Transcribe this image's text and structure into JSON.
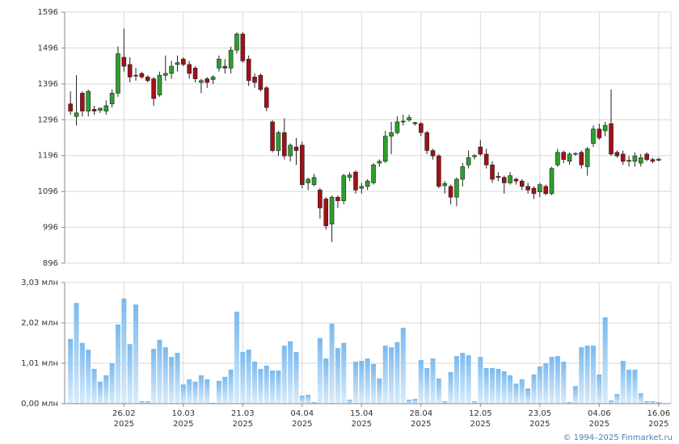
{
  "chart_data": [
    {
      "type": "candlestick",
      "up_color": "#2ca02c",
      "down_color": "#a50f15",
      "grid": true,
      "ylim": [
        896,
        1596
      ],
      "yticks": [
        896,
        996,
        1096,
        1196,
        1296,
        1396,
        1496,
        1596
      ],
      "open": [
        1340,
        1305,
        1370,
        1320,
        1325,
        1322,
        1320,
        1340,
        1370,
        1470,
        1450,
        1420,
        1425,
        1415,
        1410,
        1365,
        1420,
        1425,
        1450,
        1465,
        1450,
        1440,
        1400,
        1410,
        1408,
        1440,
        1445,
        1440,
        1490,
        1535,
        1465,
        1415,
        1420,
        1385,
        1290,
        1210,
        1260,
        1195,
        1220,
        1225,
        1120,
        1115,
        1100,
        1075,
        1005,
        1080,
        1070,
        1135,
        1150,
        1105,
        1110,
        1120,
        1175,
        1180,
        1250,
        1260,
        1292,
        1295,
        1288,
        1285,
        1260,
        1210,
        1195,
        1112,
        1110,
        1080,
        1130,
        1170,
        1193,
        1220,
        1200,
        1170,
        1138,
        1135,
        1120,
        1130,
        1125,
        1110,
        1105,
        1095,
        1110,
        1090,
        1170,
        1205,
        1180,
        1200,
        1205,
        1165,
        1230,
        1270,
        1265,
        1285,
        1205,
        1200,
        1180,
        1180,
        1175,
        1200,
        1185,
        1183
      ],
      "high": [
        1375,
        1420,
        1375,
        1380,
        1335,
        1330,
        1350,
        1380,
        1500,
        1550,
        1470,
        1440,
        1430,
        1420,
        1415,
        1430,
        1475,
        1460,
        1475,
        1470,
        1460,
        1445,
        1410,
        1415,
        1420,
        1475,
        1465,
        1500,
        1540,
        1540,
        1475,
        1425,
        1425,
        1390,
        1295,
        1265,
        1300,
        1230,
        1245,
        1235,
        1135,
        1145,
        1105,
        1080,
        1085,
        1085,
        1145,
        1150,
        1155,
        1120,
        1130,
        1175,
        1185,
        1265,
        1290,
        1305,
        1310,
        1310,
        1290,
        1290,
        1265,
        1215,
        1200,
        1125,
        1115,
        1135,
        1175,
        1210,
        1200,
        1240,
        1215,
        1180,
        1150,
        1140,
        1150,
        1135,
        1130,
        1120,
        1110,
        1120,
        1115,
        1165,
        1215,
        1210,
        1205,
        1205,
        1210,
        1220,
        1280,
        1285,
        1290,
        1380,
        1210,
        1210,
        1195,
        1205,
        1200,
        1205,
        1190,
        1190
      ],
      "low": [
        1310,
        1280,
        1305,
        1305,
        1310,
        1315,
        1310,
        1330,
        1360,
        1430,
        1400,
        1405,
        1410,
        1400,
        1335,
        1360,
        1405,
        1410,
        1430,
        1445,
        1410,
        1400,
        1370,
        1385,
        1395,
        1430,
        1425,
        1425,
        1480,
        1455,
        1390,
        1385,
        1375,
        1320,
        1205,
        1195,
        1185,
        1180,
        1170,
        1105,
        1100,
        1110,
        1020,
        990,
        955,
        1050,
        1060,
        1125,
        1090,
        1090,
        1100,
        1115,
        1165,
        1175,
        1200,
        1255,
        1280,
        1290,
        1280,
        1250,
        1200,
        1185,
        1105,
        1090,
        1060,
        1055,
        1110,
        1160,
        1185,
        1195,
        1160,
        1120,
        1125,
        1090,
        1115,
        1115,
        1100,
        1090,
        1075,
        1080,
        1085,
        1085,
        1165,
        1175,
        1170,
        1195,
        1160,
        1140,
        1220,
        1240,
        1250,
        1195,
        1190,
        1170,
        1165,
        1165,
        1165,
        1180,
        1175,
        1180
      ],
      "close": [
        1320,
        1315,
        1320,
        1375,
        1320,
        1328,
        1335,
        1370,
        1480,
        1445,
        1415,
        1418,
        1415,
        1405,
        1355,
        1420,
        1425,
        1445,
        1455,
        1450,
        1425,
        1410,
        1405,
        1400,
        1415,
        1465,
        1440,
        1490,
        1535,
        1460,
        1405,
        1400,
        1380,
        1330,
        1210,
        1260,
        1195,
        1225,
        1210,
        1115,
        1130,
        1135,
        1050,
        1000,
        1080,
        1070,
        1140,
        1142,
        1100,
        1110,
        1125,
        1170,
        1180,
        1250,
        1260,
        1290,
        1290,
        1302,
        1285,
        1260,
        1210,
        1195,
        1110,
        1118,
        1080,
        1130,
        1165,
        1190,
        1196,
        1200,
        1170,
        1130,
        1135,
        1120,
        1140,
        1125,
        1110,
        1100,
        1090,
        1115,
        1090,
        1160,
        1205,
        1185,
        1200,
        1202,
        1170,
        1215,
        1270,
        1245,
        1280,
        1200,
        1195,
        1180,
        1183,
        1195,
        1190,
        1185,
        1180,
        1186
      ]
    },
    {
      "type": "bar",
      "color": "#7bbcf0",
      "grid": true,
      "ylim": [
        0,
        3.03
      ],
      "yticks": [
        {
          "value": 0,
          "label": "0,00 млн"
        },
        {
          "value": 1.01,
          "label": "1,01 млн"
        },
        {
          "value": 2.02,
          "label": "2,02 млн"
        },
        {
          "value": 3.03,
          "label": "3,03 млн"
        }
      ],
      "categories": [
        null,
        null,
        null,
        null,
        null,
        null,
        null,
        null,
        null,
        "26.02 2025",
        null,
        null,
        null,
        null,
        null,
        null,
        null,
        null,
        null,
        "10.03 2025",
        null,
        null,
        null,
        null,
        null,
        null,
        null,
        null,
        null,
        "21.03 2025",
        null,
        null,
        null,
        null,
        null,
        null,
        null,
        null,
        null,
        "04.04 2025",
        null,
        null,
        null,
        null,
        null,
        null,
        null,
        null,
        null,
        "15.04 2025",
        null,
        null,
        null,
        null,
        null,
        null,
        null,
        null,
        null,
        "28.04 2025",
        null,
        null,
        null,
        null,
        null,
        null,
        null,
        null,
        null,
        "12.05 2025",
        null,
        null,
        null,
        null,
        null,
        null,
        null,
        null,
        null,
        "23.05 2025",
        null,
        null,
        null,
        null,
        null,
        null,
        null,
        null,
        null,
        "04.06 2025",
        null,
        null,
        null,
        null,
        null,
        null,
        null,
        null,
        null,
        "16.06 2025"
      ],
      "values": [
        1.62,
        2.52,
        1.52,
        1.35,
        0.87,
        0.55,
        0.71,
        1.01,
        1.98,
        2.63,
        1.49,
        2.48,
        0.06,
        0.06,
        1.37,
        1.6,
        1.41,
        1.17,
        1.27,
        0.48,
        0.61,
        0.55,
        0.71,
        0.61,
        0.02,
        0.57,
        0.67,
        0.85,
        2.3,
        1.29,
        1.35,
        1.05,
        0.87,
        0.95,
        0.83,
        0.83,
        1.45,
        1.56,
        1.29,
        0.2,
        0.22,
        0.04,
        1.64,
        1.13,
        2.0,
        1.39,
        1.52,
        0.1,
        1.05,
        1.07,
        1.13,
        0.99,
        0.63,
        1.45,
        1.41,
        1.54,
        1.9,
        0.1,
        0.12,
        1.09,
        0.89,
        1.13,
        0.63,
        0.06,
        0.79,
        1.19,
        1.27,
        1.21,
        0.06,
        1.17,
        0.89,
        0.89,
        0.87,
        0.81,
        0.71,
        0.5,
        0.61,
        0.38,
        0.73,
        0.93,
        1.01,
        1.17,
        1.19,
        1.05,
        0.04,
        0.44,
        1.41,
        1.45,
        1.45,
        0.73,
        2.16,
        0.08,
        0.24,
        1.07,
        0.85,
        0.85,
        0.26,
        0.06,
        0.06,
        0.04
      ]
    }
  ],
  "copyright": "© 1994–2025 Finmarket.ru"
}
